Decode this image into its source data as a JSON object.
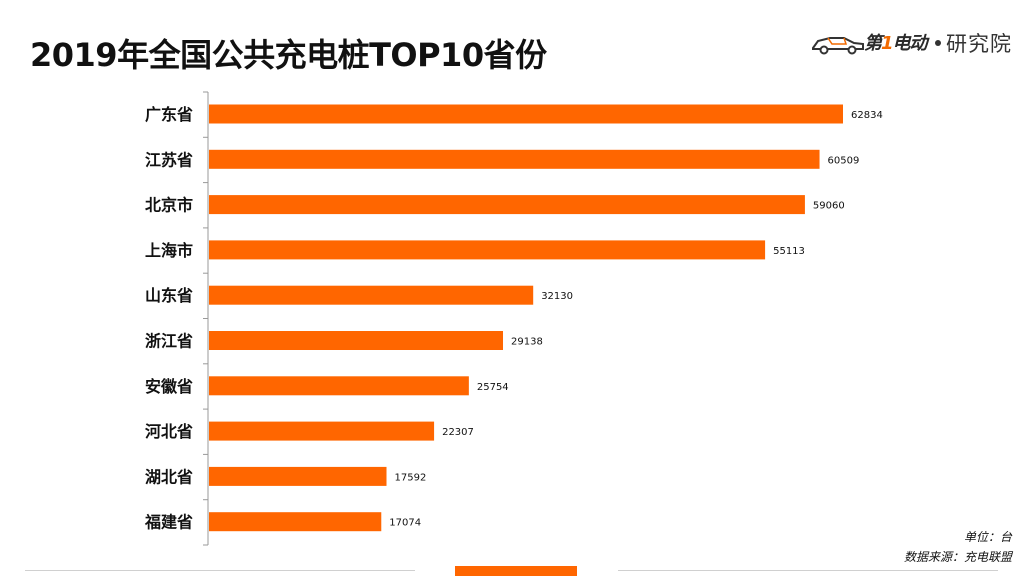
{
  "title": "2019年全国公共充电桩TOP10省份",
  "logo": {
    "brand_prefix": "第",
    "brand_one": "1",
    "brand_suffix": "电动",
    "institute": "研究院",
    "car_icon": "car-icon"
  },
  "notes": {
    "unit": "单位：台",
    "source": "数据来源：充电联盟"
  },
  "colors": {
    "bar": "#ff6600",
    "axis": "#999999",
    "footer_accent": "#ff6600"
  },
  "chart_data": {
    "type": "bar",
    "orientation": "horizontal",
    "title": "2019年全国公共充电桩TOP10省份",
    "categories": [
      "广东省",
      "江苏省",
      "北京市",
      "上海市",
      "山东省",
      "浙江省",
      "安徽省",
      "河北省",
      "湖北省",
      "福建省"
    ],
    "values": [
      62834,
      60509,
      59060,
      55113,
      32130,
      29138,
      25754,
      22307,
      17592,
      17074
    ],
    "data_labels": [
      "62834",
      "60509",
      "59060",
      "55113",
      "32130",
      "29138",
      "25754",
      "22307",
      "17592",
      "17074"
    ],
    "xlabel": "",
    "ylabel": "",
    "xlim": [
      0,
      63000
    ],
    "grid": false,
    "legend": "none"
  }
}
